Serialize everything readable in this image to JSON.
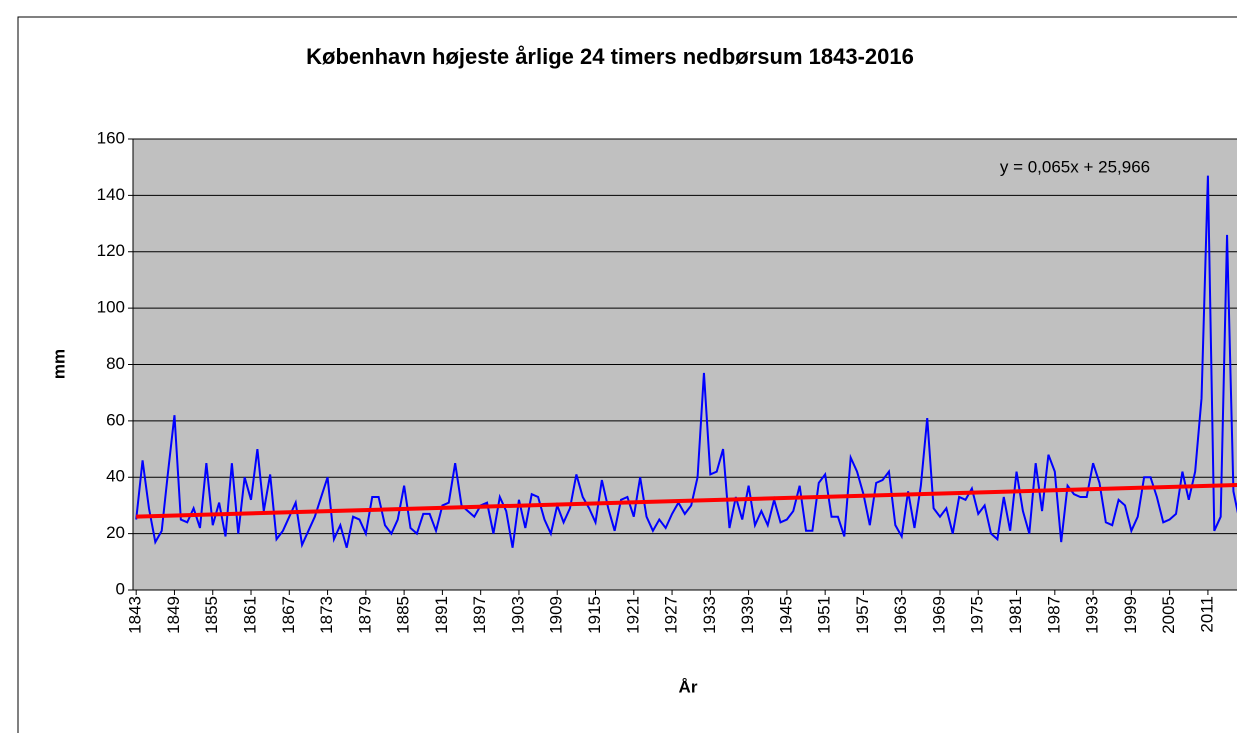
{
  "chart_data": {
    "type": "line",
    "title": "København højeste årlige 24 timers nedbørsum 1843-2016",
    "x_label": "År",
    "y_label": "mm",
    "x": [
      1843,
      1844,
      1845,
      1846,
      1847,
      1848,
      1849,
      1850,
      1851,
      1852,
      1853,
      1854,
      1855,
      1856,
      1857,
      1858,
      1859,
      1860,
      1861,
      1862,
      1863,
      1864,
      1865,
      1866,
      1867,
      1868,
      1869,
      1870,
      1871,
      1872,
      1873,
      1874,
      1875,
      1876,
      1877,
      1878,
      1879,
      1880,
      1881,
      1882,
      1883,
      1884,
      1885,
      1886,
      1887,
      1888,
      1889,
      1890,
      1891,
      1892,
      1893,
      1894,
      1895,
      1896,
      1897,
      1898,
      1899,
      1900,
      1901,
      1902,
      1903,
      1904,
      1905,
      1906,
      1907,
      1908,
      1909,
      1910,
      1911,
      1912,
      1913,
      1914,
      1915,
      1916,
      1917,
      1918,
      1919,
      1920,
      1921,
      1922,
      1923,
      1924,
      1925,
      1926,
      1927,
      1928,
      1929,
      1930,
      1931,
      1932,
      1933,
      1934,
      1935,
      1936,
      1937,
      1938,
      1939,
      1940,
      1941,
      1942,
      1943,
      1944,
      1945,
      1946,
      1947,
      1948,
      1949,
      1950,
      1951,
      1952,
      1953,
      1954,
      1955,
      1956,
      1957,
      1958,
      1959,
      1960,
      1961,
      1962,
      1963,
      1964,
      1965,
      1966,
      1967,
      1968,
      1969,
      1970,
      1971,
      1972,
      1973,
      1974,
      1975,
      1976,
      1977,
      1978,
      1979,
      1980,
      1981,
      1982,
      1983,
      1984,
      1985,
      1986,
      1987,
      1988,
      1989,
      1990,
      1991,
      1992,
      1993,
      1994,
      1995,
      1996,
      1997,
      1998,
      1999,
      2000,
      2001,
      2002,
      2003,
      2004,
      2005,
      2006,
      2007,
      2008,
      2009,
      2010,
      2011,
      2012,
      2013,
      2014,
      2015,
      2016
    ],
    "series": [
      {
        "name": "nedbør",
        "color": "#0000ff",
        "values": [
          25,
          46,
          29,
          17,
          21,
          42,
          62,
          25,
          24,
          29,
          22,
          45,
          23,
          31,
          19,
          45,
          20,
          40,
          32,
          50,
          28,
          41,
          18,
          21,
          26,
          31,
          16,
          21,
          26,
          33,
          40,
          18,
          23,
          15,
          26,
          25,
          20,
          33,
          33,
          23,
          20,
          25,
          37,
          22,
          20,
          27,
          27,
          21,
          30,
          31,
          45,
          30,
          28,
          26,
          30,
          31,
          20,
          33,
          28,
          15,
          32,
          22,
          34,
          33,
          25,
          20,
          30,
          24,
          29,
          41,
          33,
          29,
          24,
          39,
          29,
          21,
          32,
          33,
          26,
          40,
          26,
          21,
          25,
          22,
          27,
          31,
          27,
          30,
          40,
          77,
          41,
          42,
          50,
          22,
          33,
          25,
          37,
          23,
          28,
          23,
          32,
          24,
          25,
          28,
          37,
          21,
          21,
          38,
          41,
          26,
          26,
          19,
          47,
          42,
          34,
          23,
          38,
          39,
          42,
          23,
          19,
          35,
          22,
          37,
          61,
          29,
          26,
          29,
          20,
          33,
          32,
          36,
          27,
          30,
          20,
          18,
          33,
          21,
          42,
          28,
          20,
          45,
          28,
          48,
          42,
          17,
          37,
          34,
          33,
          33,
          45,
          38,
          24,
          23,
          32,
          30,
          21,
          26,
          40,
          40,
          33,
          24,
          25,
          27,
          42,
          32,
          42,
          68,
          147,
          21,
          26,
          126,
          35,
          24
        ]
      }
    ],
    "trendline": {
      "slope": 0.065,
      "intercept": 25.966,
      "color": "#ff0000",
      "label": "y = 0,065x + 25,966"
    },
    "xlim": [
      1842.5,
      2016.5
    ],
    "xticks": [
      1843,
      1849,
      1855,
      1861,
      1867,
      1873,
      1879,
      1885,
      1891,
      1897,
      1903,
      1909,
      1915,
      1921,
      1927,
      1933,
      1939,
      1945,
      1951,
      1957,
      1963,
      1969,
      1975,
      1981,
      1987,
      1993,
      1999,
      2005,
      2011
    ],
    "ylim": [
      0,
      160
    ],
    "yticks": [
      0,
      20,
      40,
      60,
      80,
      100,
      120,
      140,
      160
    ],
    "grid": true
  }
}
